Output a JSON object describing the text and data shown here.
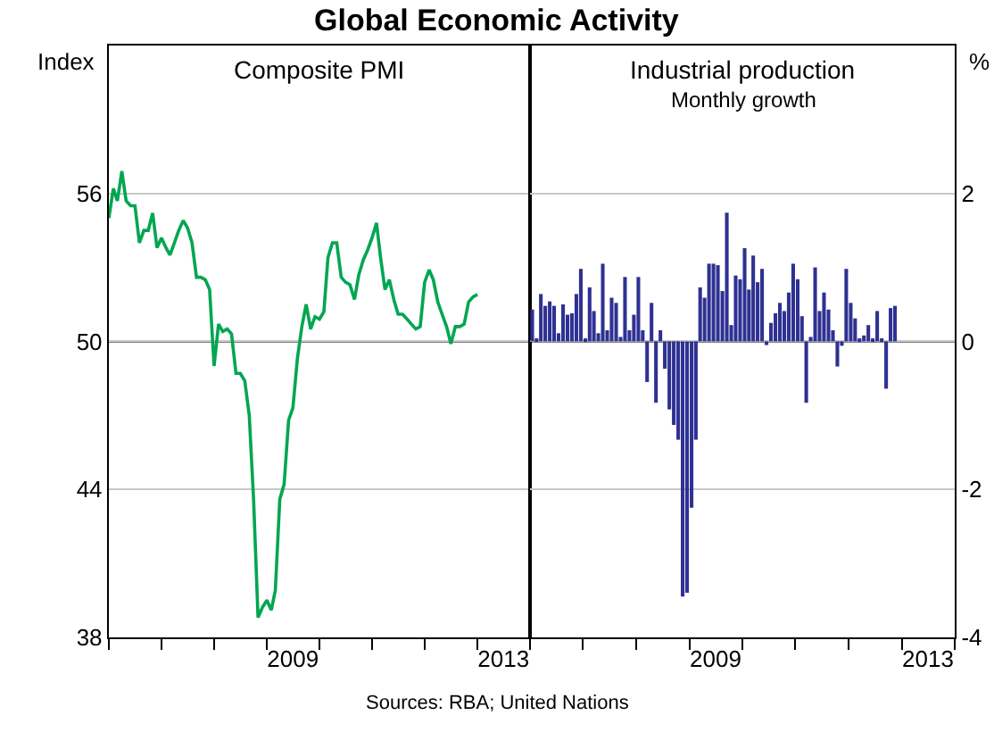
{
  "chart_data": [
    {
      "type": "line",
      "title": "Composite PMI",
      "ylabel": "Index",
      "annotations": [
        "Global Economic Activity"
      ],
      "x": [
        "2006-01",
        "2006-02",
        "2006-03",
        "2006-04",
        "2006-05",
        "2006-06",
        "2006-07",
        "2006-08",
        "2006-09",
        "2006-10",
        "2006-11",
        "2006-12",
        "2007-01",
        "2007-02",
        "2007-03",
        "2007-04",
        "2007-05",
        "2007-06",
        "2007-07",
        "2007-08",
        "2007-09",
        "2007-10",
        "2007-11",
        "2007-12",
        "2008-01",
        "2008-02",
        "2008-03",
        "2008-04",
        "2008-05",
        "2008-06",
        "2008-07",
        "2008-08",
        "2008-09",
        "2008-10",
        "2008-11",
        "2008-12",
        "2009-01",
        "2009-02",
        "2009-03",
        "2009-04",
        "2009-05",
        "2009-06",
        "2009-07",
        "2009-08",
        "2009-09",
        "2009-10",
        "2009-11",
        "2009-12",
        "2010-01",
        "2010-02",
        "2010-03",
        "2010-04",
        "2010-05",
        "2010-06",
        "2010-07",
        "2010-08",
        "2010-09",
        "2010-10",
        "2010-11",
        "2010-12",
        "2011-01",
        "2011-02",
        "2011-03",
        "2011-04",
        "2011-05",
        "2011-06",
        "2011-07",
        "2011-08",
        "2011-09",
        "2011-10",
        "2011-11",
        "2011-12",
        "2012-01",
        "2012-02",
        "2012-03",
        "2012-04",
        "2012-05",
        "2012-06",
        "2012-07",
        "2012-08",
        "2012-09",
        "2012-10",
        "2012-11",
        "2012-12",
        "2013-01"
      ],
      "series": [
        {
          "color": "#00a651",
          "values": [
            55.0,
            56.2,
            55.7,
            56.9,
            55.7,
            55.5,
            55.5,
            54.0,
            54.5,
            54.5,
            55.2,
            53.8,
            54.2,
            53.8,
            53.5,
            54.0,
            54.5,
            54.9,
            54.6,
            54.0,
            52.6,
            52.6,
            52.5,
            52.1,
            49.0,
            50.7,
            50.4,
            50.5,
            50.3,
            48.7,
            48.7,
            48.4,
            47.0,
            43.6,
            38.8,
            39.2,
            39.5,
            39.1,
            39.9,
            43.6,
            44.2,
            46.8,
            47.3,
            49.3,
            50.6,
            51.5,
            50.5,
            51.0,
            50.9,
            51.2,
            53.4,
            54.0,
            54.0,
            52.6,
            52.4,
            52.3,
            51.7,
            52.7,
            53.3,
            53.7,
            54.2,
            54.8,
            53.4,
            52.1,
            52.5,
            51.7,
            51.1,
            51.1,
            50.9,
            50.7,
            50.5,
            50.6,
            52.4,
            52.9,
            52.5,
            51.6,
            51.1,
            50.6,
            49.9,
            50.6,
            50.6,
            50.7,
            51.6,
            51.8,
            51.9
          ]
        }
      ],
      "xlim": [
        "2006-01-01",
        "2014-01-01"
      ],
      "xticks": [
        {
          "value": "2006-01-01",
          "label": null
        },
        {
          "value": "2007-01-01",
          "label": null
        },
        {
          "value": "2008-01-01",
          "label": null
        },
        {
          "value": "2009-01-01",
          "label": null
        },
        {
          "value": "2009-07-01",
          "label": "2009"
        },
        {
          "value": "2010-01-01",
          "label": null
        },
        {
          "value": "2011-01-01",
          "label": null
        },
        {
          "value": "2012-01-01",
          "label": null
        },
        {
          "value": "2013-01-01",
          "label": null
        },
        {
          "value": "2013-07-01",
          "label": "2013"
        },
        {
          "value": "2014-01-01",
          "label": null
        }
      ],
      "ylim": [
        38,
        62
      ],
      "yticks": [
        38,
        44,
        50,
        56
      ],
      "ref_lines": [
        {
          "axis": "y",
          "value": 50,
          "color": "#000000"
        }
      ],
      "grid": "y",
      "marker": "none",
      "line_style": "solid"
    },
    {
      "type": "bar",
      "title": "Industrial production",
      "subtitle": "Monthly growth",
      "ylabel": "%",
      "annotations": [
        "Sources: RBA; United Nations"
      ],
      "x": [
        "2006-01",
        "2006-02",
        "2006-03",
        "2006-04",
        "2006-05",
        "2006-06",
        "2006-07",
        "2006-08",
        "2006-09",
        "2006-10",
        "2006-11",
        "2006-12",
        "2007-01",
        "2007-02",
        "2007-03",
        "2007-04",
        "2007-05",
        "2007-06",
        "2007-07",
        "2007-08",
        "2007-09",
        "2007-10",
        "2007-11",
        "2007-12",
        "2008-01",
        "2008-02",
        "2008-03",
        "2008-04",
        "2008-05",
        "2008-06",
        "2008-07",
        "2008-08",
        "2008-09",
        "2008-10",
        "2008-11",
        "2008-12",
        "2009-01",
        "2009-02",
        "2009-03",
        "2009-04",
        "2009-05",
        "2009-06",
        "2009-07",
        "2009-08",
        "2009-09",
        "2009-10",
        "2009-11",
        "2009-12",
        "2010-01",
        "2010-02",
        "2010-03",
        "2010-04",
        "2010-05",
        "2010-06",
        "2010-07",
        "2010-08",
        "2010-09",
        "2010-10",
        "2010-11",
        "2010-12",
        "2011-01",
        "2011-02",
        "2011-03",
        "2011-04",
        "2011-05",
        "2011-06",
        "2011-07",
        "2011-08",
        "2011-09",
        "2011-10",
        "2011-11",
        "2011-12",
        "2012-01",
        "2012-02",
        "2012-03",
        "2012-04",
        "2012-05",
        "2012-06",
        "2012-07",
        "2012-08",
        "2012-09",
        "2012-10",
        "2012-11"
      ],
      "series": [
        {
          "color": "#2e3192",
          "values": [
            0.43,
            0.03,
            0.64,
            0.48,
            0.54,
            0.48,
            0.11,
            0.5,
            0.36,
            0.38,
            0.64,
            0.98,
            0.02,
            0.73,
            0.41,
            0.11,
            1.05,
            0.15,
            0.59,
            0.52,
            0.06,
            0.87,
            0.15,
            0.36,
            0.87,
            0.15,
            -0.55,
            0.52,
            -0.83,
            0.15,
            -0.37,
            -0.92,
            -1.13,
            -1.33,
            -3.45,
            -3.4,
            -2.25,
            -1.33,
            0.73,
            0.59,
            1.05,
            1.05,
            1.03,
            0.68,
            1.74,
            0.22,
            0.89,
            0.84,
            1.26,
            0.7,
            1.16,
            0.8,
            0.98,
            -0.05,
            0.25,
            0.38,
            0.52,
            0.41,
            0.66,
            1.05,
            0.84,
            0.34,
            -0.83,
            0.06,
            1.0,
            0.41,
            0.66,
            0.43,
            0.15,
            -0.34,
            -0.06,
            0.98,
            0.52,
            0.31,
            0.04,
            0.08,
            0.22,
            0.04,
            0.41,
            0.04,
            -0.64,
            0.45,
            0.48
          ]
        }
      ],
      "xlim": [
        "2006-01-01",
        "2014-01-01"
      ],
      "xticks": [
        {
          "value": "2006-01-01",
          "label": null
        },
        {
          "value": "2007-01-01",
          "label": null
        },
        {
          "value": "2008-01-01",
          "label": null
        },
        {
          "value": "2009-01-01",
          "label": null
        },
        {
          "value": "2009-07-01",
          "label": "2009"
        },
        {
          "value": "2010-01-01",
          "label": null
        },
        {
          "value": "2011-01-01",
          "label": null
        },
        {
          "value": "2012-01-01",
          "label": null
        },
        {
          "value": "2013-01-01",
          "label": null
        },
        {
          "value": "2013-07-01",
          "label": "2013"
        },
        {
          "value": "2014-01-01",
          "label": null
        }
      ],
      "ylim": [
        -4,
        4
      ],
      "yticks": [
        -4,
        -2,
        0,
        2
      ],
      "ref_lines": [
        {
          "axis": "y",
          "value": 0,
          "color": "#000000"
        }
      ],
      "grid": "y"
    }
  ]
}
